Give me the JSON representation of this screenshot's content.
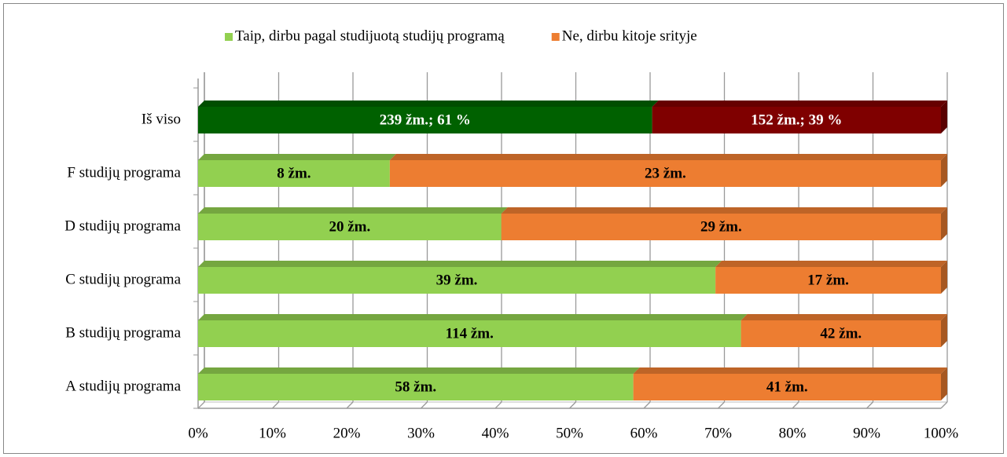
{
  "chart_data": {
    "type": "bar",
    "orientation": "horizontal",
    "stacking": "percent",
    "categories": [
      "Iš viso",
      "F studijų programa",
      "D studijų programa",
      "C studijų programa",
      "B studijų programa",
      "A studijų programa"
    ],
    "series": [
      {
        "name": "Taip, dirbu pagal studijuotą studijų programą",
        "color": "#92d050",
        "colors": [
          "#006100",
          "#92d050",
          "#92d050",
          "#92d050",
          "#92d050",
          "#92d050"
        ],
        "values": [
          239,
          8,
          20,
          39,
          114,
          58
        ],
        "value_labels": [
          "239 žm.; 61 %",
          "8 žm.",
          "20 žm.",
          "39 žm.",
          "114 žm.",
          "58 žm."
        ]
      },
      {
        "name": "Ne, dirbu kitoje srityje",
        "color": "#ed7d31",
        "colors": [
          "#7f0000",
          "#ed7d31",
          "#ed7d31",
          "#ed7d31",
          "#ed7d31",
          "#ed7d31"
        ],
        "values": [
          152,
          23,
          29,
          17,
          42,
          41
        ],
        "value_labels": [
          "152 žm.; 39 %",
          "23 žm.",
          "29 žm.",
          "17 žm.",
          "42 žm.",
          "41 žm."
        ]
      }
    ],
    "xlim": [
      0,
      100
    ],
    "xticks": [
      {
        "value": 0,
        "label": "0%"
      },
      {
        "value": 10,
        "label": "10%"
      },
      {
        "value": 20,
        "label": "20%"
      },
      {
        "value": 30,
        "label": "30%"
      },
      {
        "value": 40,
        "label": "40%"
      },
      {
        "value": 50,
        "label": "50%"
      },
      {
        "value": 60,
        "label": "60%"
      },
      {
        "value": 70,
        "label": "70%"
      },
      {
        "value": 80,
        "label": "80%"
      },
      {
        "value": 90,
        "label": "90%"
      },
      {
        "value": 100,
        "label": "100%"
      }
    ],
    "grid": true,
    "legend": "top"
  }
}
